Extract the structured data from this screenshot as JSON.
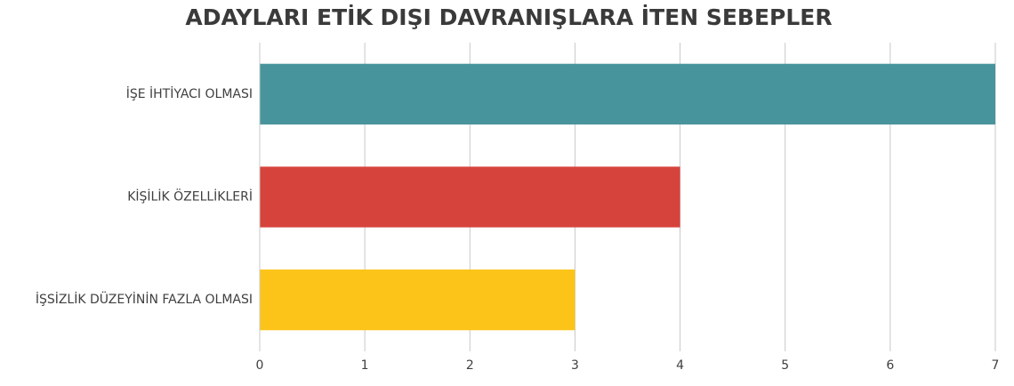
{
  "chart_data": {
    "type": "hbar",
    "title": "ADAYLARI ETİK DIŞI DAVRANIŞLARA İTEN SEBEPLER",
    "categories": [
      "İŞE İHTİYACI OLMASI",
      "KİŞİLİK ÖZELLİKLERİ",
      "İŞSİZLİK DÜZEYİNİN FAZLA OLMASI"
    ],
    "values": [
      7,
      4,
      3
    ],
    "colors": [
      "#48949c",
      "#d6433d",
      "#fcc419"
    ],
    "xlim": [
      0,
      7
    ],
    "xticks": [
      0,
      1,
      2,
      3,
      4,
      5,
      6,
      7
    ],
    "grid": true
  }
}
